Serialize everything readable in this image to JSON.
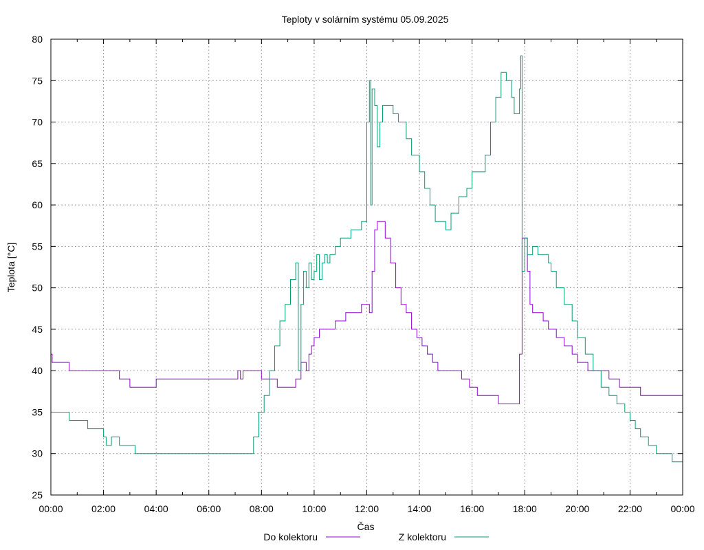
{
  "chart_data": {
    "type": "line",
    "title": "Teploty v solárním systému 05.09.2025",
    "xlabel": "Čas",
    "ylabel": "Teplota [°C]",
    "ylim": [
      25,
      80
    ],
    "yticks": [
      25,
      30,
      35,
      40,
      45,
      50,
      55,
      60,
      65,
      70,
      75,
      80
    ],
    "xlim": [
      0,
      24
    ],
    "xticks": [
      "00:00",
      "02:00",
      "04:00",
      "06:00",
      "08:00",
      "10:00",
      "12:00",
      "14:00",
      "16:00",
      "18:00",
      "20:00",
      "22:00",
      "00:00"
    ],
    "grid": true,
    "legend_position": "bottom",
    "series": [
      {
        "name": "Do kolektoru",
        "color": "#9400d3",
        "x": [
          0.0,
          0.05,
          0.6,
          0.7,
          1.6,
          2.6,
          3.0,
          4.0,
          5.0,
          6.0,
          7.0,
          7.1,
          7.2,
          7.3,
          7.8,
          8.0,
          8.3,
          8.6,
          9.0,
          9.3,
          9.5,
          9.7,
          9.8,
          9.9,
          10.0,
          10.2,
          10.4,
          10.6,
          10.8,
          11.0,
          11.2,
          11.4,
          11.6,
          11.8,
          12.0,
          12.1,
          12.15,
          12.2,
          12.3,
          12.4,
          12.5,
          12.7,
          12.9,
          13.1,
          13.3,
          13.5,
          13.7,
          13.9,
          14.1,
          14.3,
          14.5,
          14.7,
          15.0,
          15.3,
          15.6,
          15.9,
          16.2,
          16.5,
          16.9,
          17.0,
          17.3,
          17.6,
          17.75,
          17.8,
          17.9,
          18.0,
          18.1,
          18.2,
          18.3,
          18.5,
          18.7,
          18.9,
          19.2,
          19.5,
          19.8,
          20.0,
          20.4,
          20.8,
          21.2,
          21.6,
          22.0,
          22.4,
          22.8,
          23.2,
          23.6,
          24.0
        ],
        "y": [
          42,
          41,
          41,
          40,
          40,
          39,
          38,
          39,
          39,
          39,
          39,
          40,
          39,
          40,
          40,
          39,
          39,
          38,
          38,
          39,
          41,
          40,
          42,
          43,
          44,
          45,
          45,
          45,
          46,
          46,
          47,
          47,
          47,
          48,
          48,
          47,
          47,
          52,
          57,
          58,
          58,
          56,
          53,
          50,
          48,
          47,
          45,
          44,
          43,
          42,
          41,
          40,
          40,
          40,
          39,
          38,
          37,
          37,
          37,
          36,
          36,
          36,
          36,
          42,
          56,
          56,
          52,
          48,
          47,
          47,
          46,
          45,
          44,
          43,
          42,
          41,
          40,
          40,
          39,
          38,
          38,
          37,
          37,
          37,
          37,
          37
        ]
      },
      {
        "name": "Z kolektoru",
        "color": "#009e73",
        "x": [
          0.0,
          0.6,
          0.7,
          1.0,
          1.4,
          2.0,
          2.1,
          2.3,
          2.6,
          3.0,
          3.2,
          4.0,
          5.0,
          6.0,
          7.0,
          7.5,
          7.7,
          7.9,
          8.1,
          8.3,
          8.5,
          8.7,
          8.9,
          9.1,
          9.3,
          9.4,
          9.5,
          9.6,
          9.7,
          9.8,
          9.9,
          10.0,
          10.1,
          10.2,
          10.3,
          10.4,
          10.5,
          10.6,
          10.8,
          11.0,
          11.2,
          11.4,
          11.6,
          11.8,
          12.0,
          12.1,
          12.15,
          12.2,
          12.3,
          12.4,
          12.5,
          12.6,
          12.8,
          13.0,
          13.2,
          13.5,
          13.7,
          14.0,
          14.2,
          14.4,
          14.6,
          14.8,
          15.0,
          15.2,
          15.5,
          15.8,
          16.0,
          16.3,
          16.5,
          16.7,
          16.9,
          17.1,
          17.3,
          17.5,
          17.6,
          17.8,
          17.85,
          17.9,
          18.0,
          18.1,
          18.2,
          18.3,
          18.5,
          18.7,
          18.9,
          19.0,
          19.2,
          19.5,
          19.8,
          20.0,
          20.3,
          20.6,
          20.9,
          21.2,
          21.5,
          21.8,
          22.0,
          22.2,
          22.4,
          22.7,
          23.0,
          23.3,
          23.6,
          24.0
        ],
        "y": [
          35,
          35,
          34,
          34,
          33,
          32,
          31,
          32,
          31,
          31,
          30,
          30,
          30,
          30,
          30,
          30,
          32,
          35,
          37,
          40,
          43,
          46,
          48,
          51,
          53,
          40,
          48,
          52,
          50,
          53,
          51,
          52,
          54,
          51,
          53,
          54,
          53,
          54,
          55,
          56,
          56,
          57,
          57,
          58,
          70,
          75,
          60,
          74,
          72,
          67,
          70,
          72,
          72,
          71,
          70,
          68,
          66,
          64,
          62,
          60,
          58,
          58,
          57,
          59,
          61,
          62,
          64,
          64,
          66,
          70,
          73,
          76,
          75,
          73,
          71,
          74,
          78,
          52,
          56,
          54,
          54,
          55,
          54,
          54,
          53,
          52,
          50,
          48,
          46,
          44,
          42,
          40,
          38,
          37,
          36,
          35,
          34,
          33,
          32,
          31,
          30,
          30,
          29,
          29
        ]
      }
    ]
  }
}
